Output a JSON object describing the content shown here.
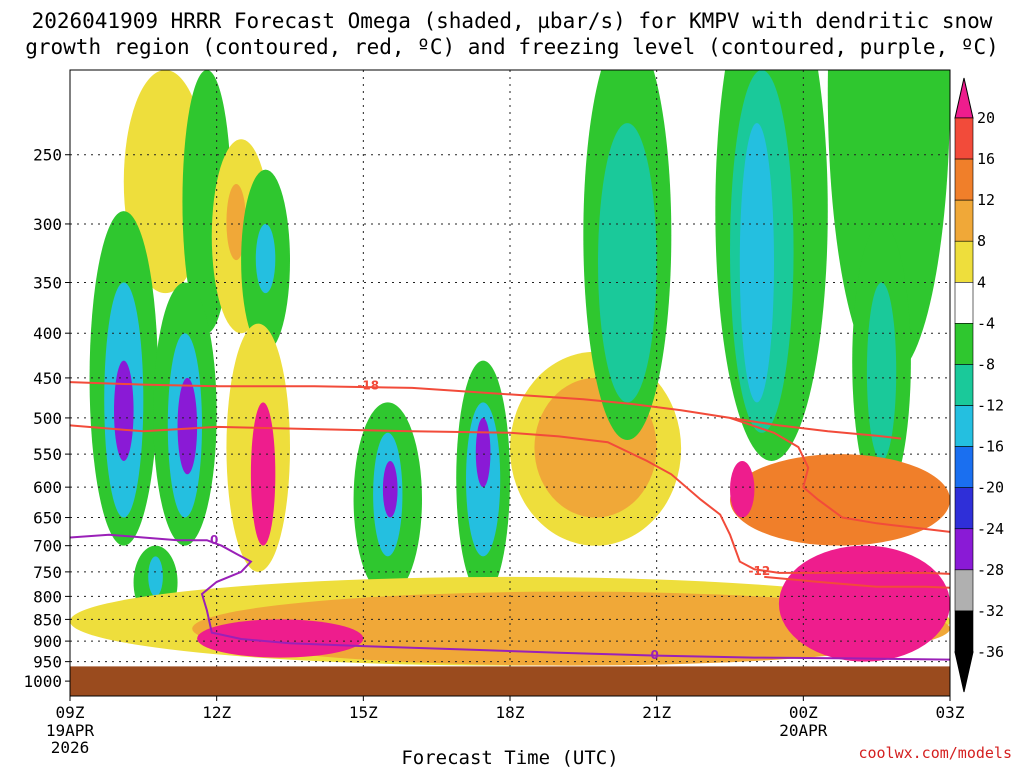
{
  "chart_data": {
    "type": "heatmap",
    "title": {
      "line1": "2026041909 HRRR Forecast Omega (shaded, µbar/s) for KMPV with dendritic snow",
      "line2": "growth region (contoured, red, ºC) and freezing level (contoured, purple, ºC)"
    },
    "xlabel": "Forecast Time (UTC)",
    "credit": "coolwx.com/models",
    "x_ticks": [
      {
        "label": "09Z",
        "sub1": "19APR",
        "sub2": "2026"
      },
      {
        "label": "12Z"
      },
      {
        "label": "15Z"
      },
      {
        "label": "18Z"
      },
      {
        "label": "21Z"
      },
      {
        "label": "00Z",
        "sub1": "20APR"
      },
      {
        "label": "03Z"
      }
    ],
    "x_range_hours": [
      0,
      18
    ],
    "y_range_hpa": [
      200,
      1040
    ],
    "y_ticks": [
      250,
      300,
      350,
      400,
      450,
      500,
      550,
      600,
      650,
      700,
      750,
      800,
      850,
      900,
      950,
      1000
    ],
    "ground_level_hpa": 962,
    "colorbar": {
      "labels": [
        "20",
        "16",
        "12",
        "8",
        "4",
        "-4",
        "-8",
        "-12",
        "-16",
        "-20",
        "-24",
        "-28",
        "-32",
        "-36"
      ],
      "top_arrow_color": "#ee1d8d",
      "bottom_arrow_color": "#000000",
      "bands": [
        "#ee1d8d",
        "#f24b3a",
        "#f07f2a",
        "#f0a838",
        "#eede3c",
        "#ffffff",
        "#2fc72f",
        "#1ac99a",
        "#24bfe0",
        "#1a6ff0",
        "#2f2fd8",
        "#8a1ad6",
        "#b0b0b0",
        "#000000"
      ]
    },
    "shading": [
      {
        "color": "#eede3c",
        "points": [
          [
            1.1,
            -200
          ],
          [
            2.8,
            -200
          ],
          [
            2.8,
            -360
          ],
          [
            1.1,
            -360
          ]
        ]
      },
      {
        "color": "#2fc72f",
        "points": [
          [
            2.3,
            -200
          ],
          [
            3.3,
            -200
          ],
          [
            3.1,
            -400
          ],
          [
            2.4,
            -400
          ]
        ]
      },
      {
        "color": "#eede3c",
        "points": [
          [
            2.9,
            -240
          ],
          [
            4.1,
            -240
          ],
          [
            4.1,
            -400
          ],
          [
            2.9,
            -400
          ]
        ]
      },
      {
        "color": "#f0a838",
        "points": [
          [
            3.2,
            -270
          ],
          [
            3.6,
            -270
          ],
          [
            3.6,
            -330
          ],
          [
            3.2,
            -330
          ]
        ]
      },
      {
        "color": "#2fc72f",
        "points": [
          [
            3.5,
            -260
          ],
          [
            4.5,
            -260
          ],
          [
            4.5,
            -420
          ],
          [
            3.5,
            -420
          ]
        ]
      },
      {
        "color": "#24bfe0",
        "points": [
          [
            3.8,
            -300
          ],
          [
            4.2,
            -300
          ],
          [
            4.2,
            -360
          ],
          [
            3.8,
            -360
          ]
        ]
      },
      {
        "color": "#2fc72f",
        "points": [
          [
            0.4,
            -290
          ],
          [
            1.8,
            -290
          ],
          [
            1.8,
            -700
          ],
          [
            0.4,
            -700
          ]
        ]
      },
      {
        "color": "#24bfe0",
        "points": [
          [
            0.7,
            -350
          ],
          [
            1.5,
            -350
          ],
          [
            1.5,
            -650
          ],
          [
            0.7,
            -650
          ]
        ]
      },
      {
        "color": "#8a1ad6",
        "points": [
          [
            0.9,
            -430
          ],
          [
            1.3,
            -430
          ],
          [
            1.3,
            -560
          ],
          [
            0.9,
            -560
          ]
        ]
      },
      {
        "color": "#2fc72f",
        "points": [
          [
            1.7,
            -350
          ],
          [
            3.0,
            -350
          ],
          [
            3.0,
            -700
          ],
          [
            1.7,
            -700
          ]
        ]
      },
      {
        "color": "#24bfe0",
        "points": [
          [
            2.0,
            -400
          ],
          [
            2.7,
            -400
          ],
          [
            2.7,
            -650
          ],
          [
            2.0,
            -650
          ]
        ]
      },
      {
        "color": "#8a1ad6",
        "points": [
          [
            2.2,
            -450
          ],
          [
            2.6,
            -450
          ],
          [
            2.6,
            -580
          ],
          [
            2.2,
            -580
          ]
        ]
      },
      {
        "color": "#2fc72f",
        "points": [
          [
            1.3,
            -700
          ],
          [
            2.2,
            -700
          ],
          [
            2.2,
            -850
          ],
          [
            1.3,
            -850
          ]
        ]
      },
      {
        "color": "#24bfe0",
        "points": [
          [
            1.6,
            -720
          ],
          [
            1.9,
            -720
          ],
          [
            1.9,
            -800
          ],
          [
            1.6,
            -800
          ]
        ]
      },
      {
        "color": "#eede3c",
        "points": [
          [
            3.2,
            -390
          ],
          [
            4.5,
            -390
          ],
          [
            4.5,
            -750
          ],
          [
            3.2,
            -750
          ]
        ]
      },
      {
        "color": "#ee1d8d",
        "points": [
          [
            3.7,
            -480
          ],
          [
            4.2,
            -480
          ],
          [
            4.2,
            -700
          ],
          [
            3.7,
            -700
          ]
        ]
      },
      {
        "color": "#2fc72f",
        "points": [
          [
            5.8,
            -480
          ],
          [
            7.2,
            -480
          ],
          [
            7.2,
            -800
          ],
          [
            5.8,
            -800
          ]
        ]
      },
      {
        "color": "#24bfe0",
        "points": [
          [
            6.2,
            -520
          ],
          [
            6.8,
            -520
          ],
          [
            6.8,
            -720
          ],
          [
            6.2,
            -720
          ]
        ]
      },
      {
        "color": "#8a1ad6",
        "points": [
          [
            6.4,
            -560
          ],
          [
            6.7,
            -560
          ],
          [
            6.7,
            -650
          ],
          [
            6.4,
            -650
          ]
        ]
      },
      {
        "color": "#2fc72f",
        "points": [
          [
            7.9,
            -430
          ],
          [
            9.0,
            -430
          ],
          [
            9.0,
            -800
          ],
          [
            7.9,
            -800
          ]
        ]
      },
      {
        "color": "#24bfe0",
        "points": [
          [
            8.1,
            -480
          ],
          [
            8.8,
            -480
          ],
          [
            8.8,
            -720
          ],
          [
            8.1,
            -720
          ]
        ]
      },
      {
        "color": "#8a1ad6",
        "points": [
          [
            8.3,
            -500
          ],
          [
            8.6,
            -500
          ],
          [
            8.6,
            -600
          ],
          [
            8.3,
            -600
          ]
        ]
      },
      {
        "color": "#eede3c",
        "points": [
          [
            9.0,
            -420
          ],
          [
            12.5,
            -420
          ],
          [
            12.5,
            -700
          ],
          [
            9.0,
            -700
          ]
        ]
      },
      {
        "color": "#f0a838",
        "points": [
          [
            9.5,
            -450
          ],
          [
            12.0,
            -450
          ],
          [
            12.0,
            -650
          ],
          [
            9.5,
            -650
          ]
        ]
      },
      {
        "color": "#2fc72f",
        "points": [
          [
            10.5,
            -180
          ],
          [
            12.3,
            -180
          ],
          [
            12.3,
            -530
          ],
          [
            10.5,
            -530
          ]
        ]
      },
      {
        "color": "#1ac99a",
        "points": [
          [
            10.8,
            -230
          ],
          [
            12.0,
            -230
          ],
          [
            12.0,
            -480
          ],
          [
            10.8,
            -480
          ]
        ]
      },
      {
        "color": "#2fc72f",
        "points": [
          [
            13.2,
            -150
          ],
          [
            15.5,
            -150
          ],
          [
            15.5,
            -560
          ],
          [
            13.2,
            -560
          ]
        ]
      },
      {
        "color": "#1ac99a",
        "points": [
          [
            13.5,
            -200
          ],
          [
            14.8,
            -200
          ],
          [
            14.8,
            -520
          ],
          [
            13.5,
            -520
          ]
        ]
      },
      {
        "color": "#24bfe0",
        "points": [
          [
            13.7,
            -230
          ],
          [
            14.4,
            -230
          ],
          [
            14.4,
            -480
          ],
          [
            13.7,
            -480
          ]
        ]
      },
      {
        "color": "#2fc72f",
        "points": [
          [
            15.5,
            -100
          ],
          [
            18.0,
            -100
          ],
          [
            18.0,
            -450
          ],
          [
            15.5,
            -450
          ]
        ]
      },
      {
        "color": "#2fc72f",
        "points": [
          [
            16.0,
            -300
          ],
          [
            17.2,
            -300
          ],
          [
            17.2,
            -620
          ],
          [
            16.0,
            -620
          ]
        ]
      },
      {
        "color": "#1ac99a",
        "points": [
          [
            16.3,
            -350
          ],
          [
            16.9,
            -350
          ],
          [
            16.9,
            -560
          ],
          [
            16.3,
            -560
          ]
        ]
      },
      {
        "color": "#eede3c",
        "points": [
          [
            0.0,
            -760
          ],
          [
            18.0,
            -760
          ],
          [
            18.0,
            -960
          ],
          [
            0.0,
            -960
          ]
        ]
      },
      {
        "color": "#f0a838",
        "points": [
          [
            2.5,
            -790
          ],
          [
            18.0,
            -790
          ],
          [
            18.0,
            -960
          ],
          [
            2.5,
            -960
          ]
        ]
      },
      {
        "color": "#ee1d8d",
        "points": [
          [
            2.6,
            -850
          ],
          [
            6.0,
            -850
          ],
          [
            6.0,
            -940
          ],
          [
            2.6,
            -940
          ]
        ]
      },
      {
        "color": "#ee1d8d",
        "points": [
          [
            14.5,
            -700
          ],
          [
            18.0,
            -700
          ],
          [
            18.0,
            -950
          ],
          [
            14.5,
            -950
          ]
        ]
      },
      {
        "color": "#f07f2a",
        "points": [
          [
            13.5,
            -550
          ],
          [
            18.0,
            -550
          ],
          [
            18.0,
            -700
          ],
          [
            13.5,
            -700
          ]
        ]
      },
      {
        "color": "#ee1d8d",
        "points": [
          [
            13.5,
            -560
          ],
          [
            14.0,
            -560
          ],
          [
            14.0,
            -650
          ],
          [
            13.5,
            -650
          ]
        ]
      }
    ],
    "dgz_contours": [
      {
        "label": "-18",
        "color": "#f24b3a",
        "points": [
          [
            0,
            455
          ],
          [
            1.5,
            458
          ],
          [
            3,
            460
          ],
          [
            5,
            460
          ],
          [
            7,
            462
          ],
          [
            9,
            470
          ],
          [
            10.5,
            476
          ],
          [
            11.5,
            482
          ],
          [
            12.5,
            490
          ],
          [
            13.5,
            500
          ],
          [
            14.5,
            510
          ],
          [
            15.5,
            518
          ],
          [
            16.5,
            524
          ],
          [
            17,
            528
          ]
        ]
      },
      {
        "label": "",
        "color": "#f24b3a",
        "points": [
          [
            0,
            510
          ],
          [
            1.5,
            518
          ],
          [
            3,
            512
          ],
          [
            5,
            515
          ],
          [
            7,
            518
          ],
          [
            9,
            520
          ],
          [
            10,
            525
          ],
          [
            11,
            533
          ],
          [
            11.8,
            560
          ],
          [
            12.3,
            580
          ],
          [
            12.9,
            620
          ],
          [
            13.3,
            645
          ],
          [
            13.5,
            680
          ],
          [
            13.7,
            730
          ],
          [
            14.0,
            745
          ],
          [
            14.5,
            752
          ],
          [
            16,
            752
          ],
          [
            17.5,
            752
          ],
          [
            18,
            754
          ]
        ]
      },
      {
        "label": "-12",
        "color": "#f24b3a",
        "points": [
          [
            13.5,
            500
          ],
          [
            14.4,
            520
          ],
          [
            14.9,
            540
          ],
          [
            15.1,
            570
          ],
          [
            15.0,
            600
          ],
          [
            15.3,
            620
          ],
          [
            15.8,
            650
          ],
          [
            16.5,
            660
          ],
          [
            17.5,
            670
          ],
          [
            18,
            675
          ]
        ]
      },
      {
        "label": "",
        "color": "#f24b3a",
        "points": [
          [
            14.2,
            760
          ],
          [
            15.3,
            770
          ],
          [
            16.5,
            780
          ],
          [
            17.5,
            780
          ],
          [
            18,
            782
          ]
        ]
      }
    ],
    "freezing_contour": {
      "label": "0",
      "color": "#9a20b8",
      "points": [
        [
          0,
          685
        ],
        [
          0.8,
          680
        ],
        [
          1.5,
          685
        ],
        [
          2.2,
          690
        ],
        [
          2.8,
          690
        ],
        [
          3.1,
          700
        ],
        [
          3.4,
          715
        ],
        [
          3.7,
          730
        ],
        [
          3.5,
          750
        ],
        [
          3.0,
          770
        ],
        [
          2.7,
          795
        ],
        [
          2.8,
          830
        ],
        [
          2.9,
          880
        ],
        [
          3.5,
          895
        ],
        [
          4.5,
          905
        ],
        [
          6,
          912
        ],
        [
          8,
          920
        ],
        [
          10,
          928
        ],
        [
          12,
          935
        ],
        [
          14,
          940
        ],
        [
          16,
          942
        ],
        [
          18,
          945
        ]
      ]
    },
    "contour_labels": [
      {
        "text": "-18",
        "x": 6.1,
        "y": 459,
        "color": "#f24b3a"
      },
      {
        "text": "0",
        "x": 2.95,
        "y": 690,
        "color": "#9a20b8"
      },
      {
        "text": "-12",
        "x": 14.1,
        "y": 748,
        "color": "#f24b3a"
      },
      {
        "text": "0",
        "x": 11.96,
        "y": 933,
        "color": "#9a20b8"
      }
    ]
  }
}
